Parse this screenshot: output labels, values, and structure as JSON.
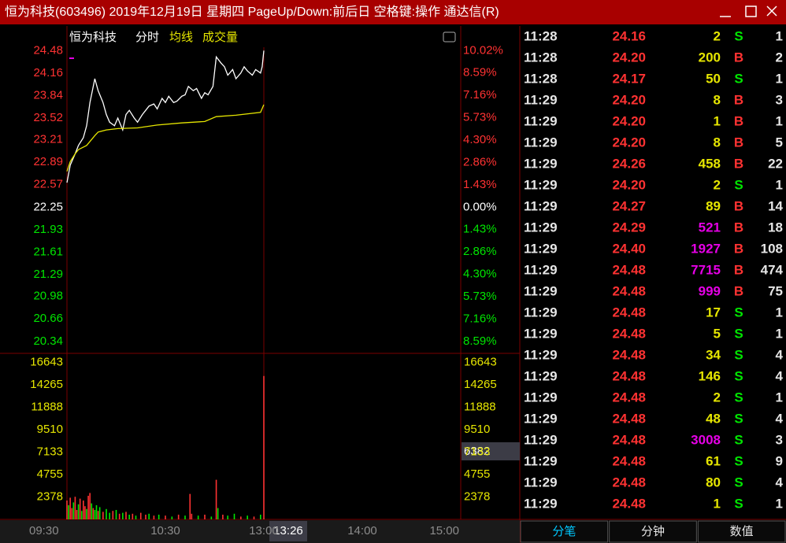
{
  "window": {
    "title": "恒为科技(603496) 2019年12月19日 星期四 PageUp/Down:前后日 空格键:操作 通达信(R)"
  },
  "header": {
    "stock": "恒为科技"
  },
  "chart_data": [
    {
      "type": "line",
      "title": "恒为科技",
      "series": [
        {
          "name": "分时",
          "color": "#ffffff",
          "x": [
            0,
            2,
            5,
            7,
            10,
            12,
            14,
            17,
            19,
            22,
            24,
            26,
            29,
            31,
            34,
            36,
            38,
            41,
            43,
            46,
            48,
            50,
            53,
            55,
            58,
            60,
            62,
            65,
            67,
            70,
            72,
            74,
            77,
            79,
            82,
            84,
            86,
            89,
            91,
            94,
            96,
            98,
            101,
            103,
            106,
            108,
            110,
            113,
            115,
            118,
            119,
            120
          ],
          "values": [
            22.6,
            22.85,
            23.01,
            23.13,
            23.24,
            23.41,
            23.74,
            24.08,
            23.91,
            23.74,
            23.57,
            23.46,
            23.41,
            23.52,
            23.35,
            23.57,
            23.63,
            23.52,
            23.46,
            23.57,
            23.63,
            23.69,
            23.72,
            23.65,
            23.8,
            23.74,
            23.83,
            23.74,
            23.76,
            23.83,
            23.85,
            23.97,
            23.91,
            23.94,
            23.8,
            23.88,
            23.85,
            23.97,
            24.39,
            24.3,
            24.25,
            24.13,
            24.21,
            24.08,
            24.16,
            24.25,
            24.19,
            24.13,
            24.21,
            24.16,
            24.25,
            24.48
          ]
        },
        {
          "name": "均线",
          "color": "#e6e600",
          "x": [
            0,
            2,
            5,
            7,
            12,
            17,
            19,
            24,
            31,
            43,
            55,
            70,
            84,
            91,
            103,
            118,
            120
          ],
          "values": [
            22.76,
            22.9,
            23.01,
            23.07,
            23.13,
            23.27,
            23.32,
            23.35,
            23.37,
            23.38,
            23.42,
            23.45,
            23.47,
            23.54,
            23.56,
            23.6,
            23.71
          ]
        }
      ],
      "xlim": [
        0,
        240
      ],
      "ylim": [
        20.17,
        24.64
      ],
      "yticks": [
        24.48,
        24.16,
        23.84,
        23.52,
        23.21,
        22.89,
        22.57,
        22.25,
        21.93,
        21.61,
        21.29,
        20.98,
        20.66,
        20.34
      ],
      "y2lim": [
        -9.35,
        10.74
      ],
      "y2ticks": [
        {
          "value": 10.02,
          "label": "10.02%"
        },
        {
          "value": 8.59,
          "label": "8.59%"
        },
        {
          "value": 7.16,
          "label": "7.16%"
        },
        {
          "value": 5.73,
          "label": "5.73%"
        },
        {
          "value": 4.3,
          "label": "4.30%"
        },
        {
          "value": 2.86,
          "label": "2.86%"
        },
        {
          "value": 1.43,
          "label": "1.43%"
        },
        {
          "value": 0,
          "label": "0.00%"
        },
        {
          "value": -1.43,
          "label": "1.43%"
        },
        {
          "value": -2.86,
          "label": "2.86%"
        },
        {
          "value": -4.3,
          "label": "4.30%"
        },
        {
          "value": -5.73,
          "label": "5.73%"
        },
        {
          "value": -7.16,
          "label": "7.16%"
        },
        {
          "value": -8.59,
          "label": "8.59%"
        }
      ],
      "up_color": "#ff3232",
      "down_color": "#00e600",
      "flat_color": "#ffffff"
    },
    {
      "type": "bar",
      "title": "成交量",
      "x": [
        0,
        1,
        2,
        3,
        4,
        5,
        6,
        7,
        8,
        9,
        10,
        11,
        12,
        13,
        14,
        15,
        16,
        17,
        18,
        19,
        20,
        22,
        24,
        26,
        28,
        30,
        32,
        34,
        36,
        38,
        40,
        42,
        45,
        48,
        50,
        53,
        56,
        60,
        64,
        68,
        72,
        75,
        76,
        80,
        84,
        88,
        91,
        92,
        95,
        98,
        102,
        106,
        110,
        114,
        118,
        120
      ],
      "values": [
        2000,
        1500,
        2300,
        1200,
        1800,
        2400,
        1000,
        1600,
        2200,
        900,
        2000,
        1400,
        1100,
        2500,
        2800,
        1700,
        1200,
        1000,
        1500,
        900,
        1300,
        800,
        1100,
        700,
        900,
        1000,
        600,
        700,
        800,
        500,
        600,
        400,
        700,
        500,
        600,
        400,
        500,
        400,
        300,
        500,
        400,
        2700,
        600,
        400,
        500,
        300,
        4200,
        1200,
        500,
        400,
        600,
        300,
        400,
        300,
        500,
        15200
      ],
      "colors": [
        "#ff3232",
        "#00e600",
        "#ff3232",
        "#ff3232",
        "#00e600",
        "#ff3232",
        "#ff3232",
        "#00e600",
        "#ff3232",
        "#00e600",
        "#ff3232",
        "#ff3232",
        "#00e600",
        "#ff3232",
        "#ff3232",
        "#00e600",
        "#ff3232",
        "#00e600",
        "#00e600",
        "#ff3232",
        "#00e600",
        "#ff3232",
        "#00e600",
        "#00e600",
        "#ff3232",
        "#00e600",
        "#ff3232",
        "#00e600",
        "#ff3232",
        "#00e600",
        "#ff3232",
        "#00e600",
        "#ff3232",
        "#ff3232",
        "#00e600",
        "#ff3232",
        "#00e600",
        "#ff3232",
        "#00e600",
        "#ff3232",
        "#00e600",
        "#ff3232",
        "#ff3232",
        "#00e600",
        "#ff3232",
        "#00e600",
        "#ff3232",
        "#00e600",
        "#ff3232",
        "#00e600",
        "#00e600",
        "#ff3232",
        "#00e600",
        "#ff3232",
        "#00e600",
        "#ff3232"
      ],
      "xlim": [
        0,
        240
      ],
      "ylim": [
        0,
        17600
      ],
      "yticks": [
        16643,
        14265,
        11888,
        9510,
        7133,
        4755,
        2378
      ],
      "tick_color": "#e6e600",
      "xticks": [
        {
          "value": 0,
          "label": "09:30"
        },
        {
          "value": 60,
          "label": "10:30"
        },
        {
          "value": 120,
          "label": "13:00"
        },
        {
          "value": 180,
          "label": "14:00"
        },
        {
          "value": 240,
          "label": "15:00"
        }
      ]
    }
  ],
  "cursor": {
    "time": "13:26",
    "volume": 6382
  },
  "trades": {
    "rows": [
      {
        "time": "11:28",
        "price": "24.16",
        "volume": 2,
        "side": "S",
        "count": 1,
        "volume_color": "#e6e600",
        "side_color": "#00e600"
      },
      {
        "time": "11:28",
        "price": "24.20",
        "volume": 200,
        "side": "B",
        "count": 2,
        "volume_color": "#e6e600",
        "side_color": "#ff3232"
      },
      {
        "time": "11:28",
        "price": "24.17",
        "volume": 50,
        "side": "S",
        "count": 1,
        "volume_color": "#e6e600",
        "side_color": "#00e600"
      },
      {
        "time": "11:29",
        "price": "24.20",
        "volume": 8,
        "side": "B",
        "count": 3,
        "volume_color": "#e6e600",
        "side_color": "#ff3232"
      },
      {
        "time": "11:29",
        "price": "24.20",
        "volume": 1,
        "side": "B",
        "count": 1,
        "volume_color": "#e6e600",
        "side_color": "#ff3232"
      },
      {
        "time": "11:29",
        "price": "24.20",
        "volume": 8,
        "side": "B",
        "count": 5,
        "volume_color": "#e6e600",
        "side_color": "#ff3232"
      },
      {
        "time": "11:29",
        "price": "24.26",
        "volume": 458,
        "side": "B",
        "count": 22,
        "volume_color": "#e6e600",
        "side_color": "#ff3232"
      },
      {
        "time": "11:29",
        "price": "24.20",
        "volume": 2,
        "side": "S",
        "count": 1,
        "volume_color": "#e6e600",
        "side_color": "#00e600"
      },
      {
        "time": "11:29",
        "price": "24.27",
        "volume": 89,
        "side": "B",
        "count": 14,
        "volume_color": "#e6e600",
        "side_color": "#ff3232"
      },
      {
        "time": "11:29",
        "price": "24.29",
        "volume": 521,
        "side": "B",
        "count": 18,
        "volume_color": "#e600e6",
        "side_color": "#ff3232"
      },
      {
        "time": "11:29",
        "price": "24.40",
        "volume": 1927,
        "side": "B",
        "count": 108,
        "volume_color": "#e600e6",
        "side_color": "#ff3232"
      },
      {
        "time": "11:29",
        "price": "24.48",
        "volume": 7715,
        "side": "B",
        "count": 474,
        "volume_color": "#e600e6",
        "side_color": "#ff3232"
      },
      {
        "time": "11:29",
        "price": "24.48",
        "volume": 999,
        "side": "B",
        "count": 75,
        "volume_color": "#e600e6",
        "side_color": "#ff3232"
      },
      {
        "time": "11:29",
        "price": "24.48",
        "volume": 17,
        "side": "S",
        "count": 1,
        "volume_color": "#e6e600",
        "side_color": "#00e600"
      },
      {
        "time": "11:29",
        "price": "24.48",
        "volume": 5,
        "side": "S",
        "count": 1,
        "volume_color": "#e6e600",
        "side_color": "#00e600"
      },
      {
        "time": "11:29",
        "price": "24.48",
        "volume": 34,
        "side": "S",
        "count": 4,
        "volume_color": "#e6e600",
        "side_color": "#00e600"
      },
      {
        "time": "11:29",
        "price": "24.48",
        "volume": 146,
        "side": "S",
        "count": 4,
        "volume_color": "#e6e600",
        "side_color": "#00e600"
      },
      {
        "time": "11:29",
        "price": "24.48",
        "volume": 2,
        "side": "S",
        "count": 1,
        "volume_color": "#e6e600",
        "side_color": "#00e600"
      },
      {
        "time": "11:29",
        "price": "24.48",
        "volume": 48,
        "side": "S",
        "count": 4,
        "volume_color": "#e6e600",
        "side_color": "#00e600"
      },
      {
        "time": "11:29",
        "price": "24.48",
        "volume": 3008,
        "side": "S",
        "count": 3,
        "volume_color": "#e600e6",
        "side_color": "#00e600"
      },
      {
        "time": "11:29",
        "price": "24.48",
        "volume": 61,
        "side": "S",
        "count": 9,
        "volume_color": "#e6e600",
        "side_color": "#00e600"
      },
      {
        "time": "11:29",
        "price": "24.48",
        "volume": 80,
        "side": "S",
        "count": 4,
        "volume_color": "#e6e600",
        "side_color": "#00e600"
      },
      {
        "time": "11:29",
        "price": "24.48",
        "volume": 1,
        "side": "S",
        "count": 1,
        "volume_color": "#e6e600",
        "side_color": "#00e600"
      }
    ]
  },
  "tabs": [
    "分笔",
    "分钟",
    "数值"
  ]
}
